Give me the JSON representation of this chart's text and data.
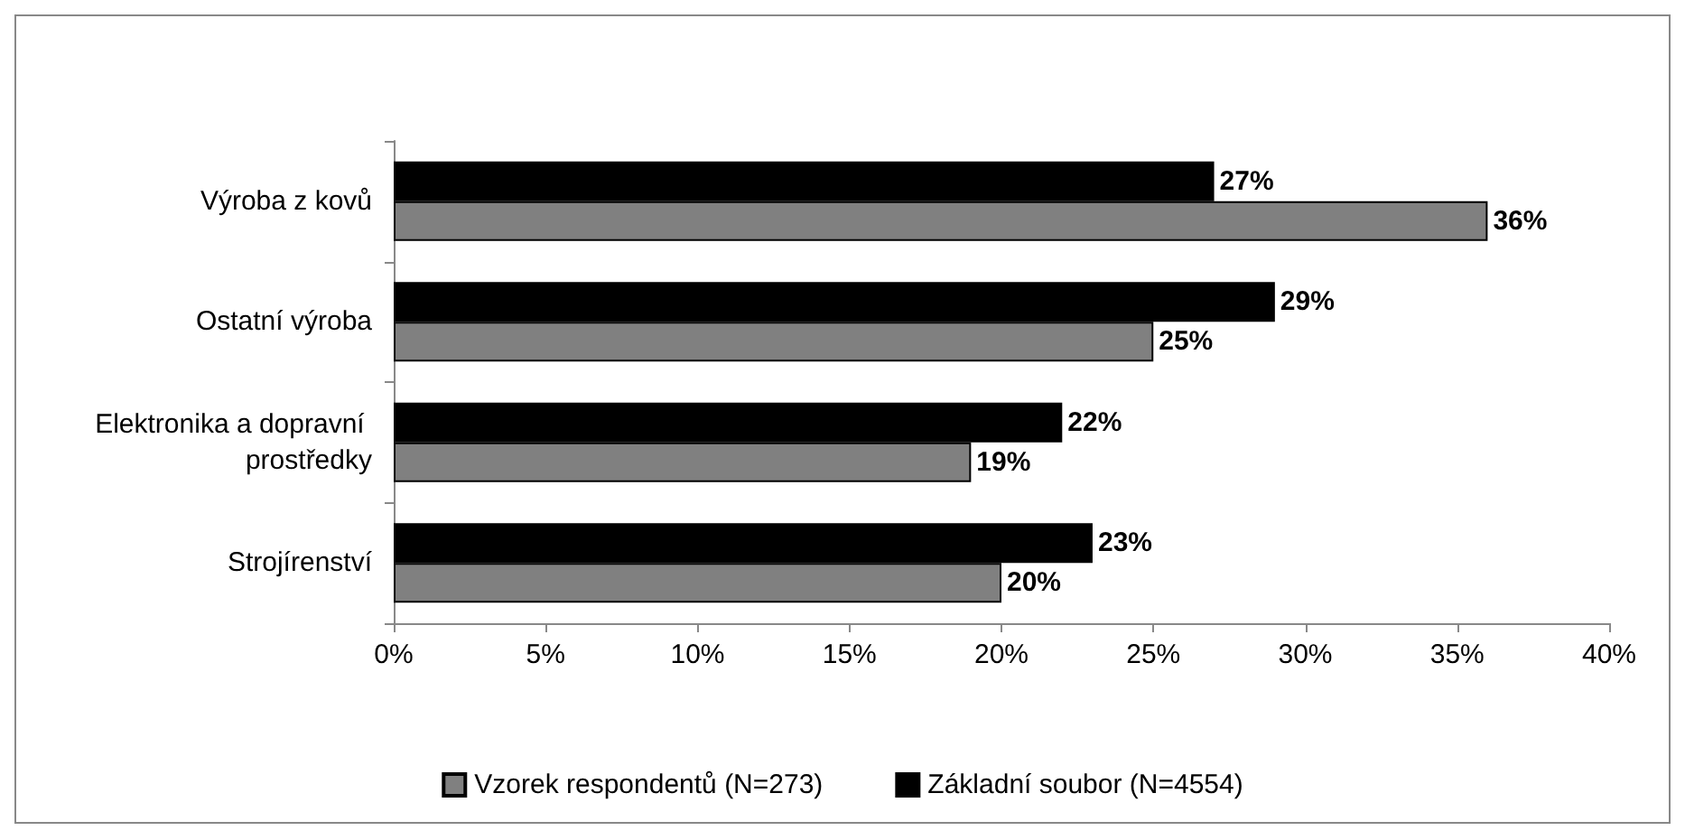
{
  "chart_data": {
    "type": "bar",
    "orientation": "horizontal",
    "categories": [
      "Výroba z kovů",
      "Ostatní výroba",
      "Elektronika a dopravní prostředky",
      "Strojírenství"
    ],
    "series": [
      {
        "name": "Vzorek respondentů (N=273)",
        "color": "#808080",
        "values": [
          36,
          25,
          19,
          20
        ],
        "value_labels": [
          "36%",
          "25%",
          "19%",
          "20%"
        ]
      },
      {
        "name": "Základní soubor (N=4554)",
        "color": "#000000",
        "values": [
          27,
          29,
          22,
          23
        ],
        "value_labels": [
          "27%",
          "29%",
          "22%",
          "23%"
        ]
      }
    ],
    "xlim": [
      0,
      40
    ],
    "xticks": [
      {
        "value": 0,
        "label": "0%"
      },
      {
        "value": 5,
        "label": "5%"
      },
      {
        "value": 10,
        "label": "10%"
      },
      {
        "value": 15,
        "label": "15%"
      },
      {
        "value": 20,
        "label": "20%"
      },
      {
        "value": 25,
        "label": "25%"
      },
      {
        "value": 30,
        "label": "30%"
      },
      {
        "value": 35,
        "label": "35%"
      },
      {
        "value": 40,
        "label": "40%"
      }
    ],
    "grid": false,
    "legend": "bottom"
  }
}
